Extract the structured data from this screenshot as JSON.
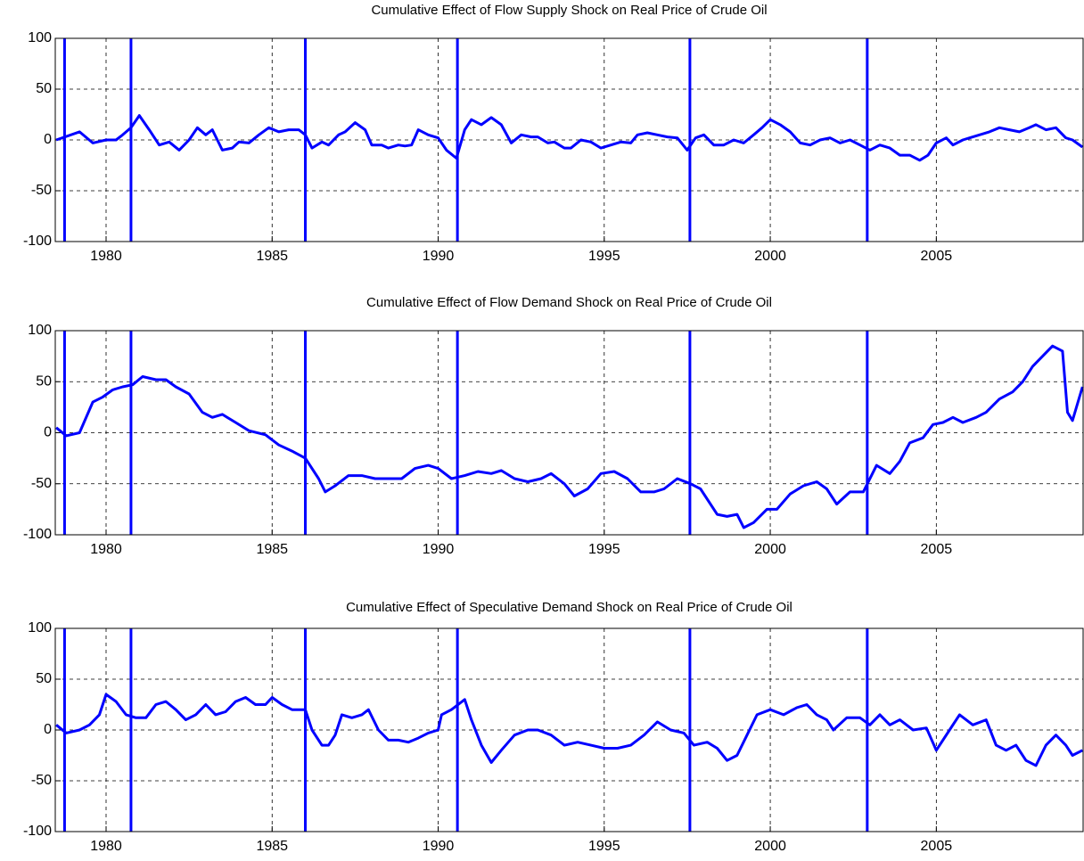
{
  "chart_data": [
    {
      "type": "line",
      "title": "Cumulative Effect of Flow Supply Shock on Real Price of Crude Oil",
      "color": "#0000ff",
      "grid": true,
      "xlim": [
        1978.47,
        2009.42
      ],
      "ylim": [
        -100,
        100
      ],
      "xticks": [
        1980,
        1985,
        1990,
        1995,
        2000,
        2005
      ],
      "yticks": [
        -100,
        -50,
        0,
        50,
        100
      ],
      "events": [
        1978.75,
        1980.75,
        1986.0,
        1990.58,
        1997.58,
        2002.92
      ],
      "x": [
        1978.5,
        1979.2,
        1979.6,
        1980.0,
        1980.3,
        1980.5,
        1980.75,
        1981.0,
        1981.3,
        1981.6,
        1981.9,
        1982.2,
        1982.5,
        1982.75,
        1983.0,
        1983.2,
        1983.5,
        1983.8,
        1984.0,
        1984.3,
        1984.6,
        1984.9,
        1985.2,
        1985.5,
        1985.8,
        1986.0,
        1986.2,
        1986.5,
        1986.7,
        1987.0,
        1987.2,
        1987.5,
        1987.8,
        1988.0,
        1988.3,
        1988.5,
        1988.8,
        1989.0,
        1989.2,
        1989.4,
        1989.7,
        1990.0,
        1990.25,
        1990.55,
        1990.8,
        1991.0,
        1991.3,
        1991.6,
        1991.9,
        1992.2,
        1992.5,
        1992.8,
        1993.0,
        1993.3,
        1993.5,
        1993.8,
        1994.0,
        1994.3,
        1994.6,
        1994.9,
        1995.2,
        1995.5,
        1995.8,
        1996.0,
        1996.3,
        1996.6,
        1996.9,
        1997.2,
        1997.5,
        1997.75,
        1998.0,
        1998.3,
        1998.6,
        1998.9,
        1999.2,
        1999.5,
        1999.75,
        2000.0,
        2000.3,
        2000.6,
        2000.9,
        2001.2,
        2001.5,
        2001.8,
        2002.1,
        2002.4,
        2002.7,
        2003.0,
        2003.3,
        2003.6,
        2003.9,
        2004.2,
        2004.5,
        2004.75,
        2005.0,
        2005.3,
        2005.5,
        2005.8,
        2006.0,
        2006.3,
        2006.6,
        2006.9,
        2007.2,
        2007.5,
        2007.8,
        2008.0,
        2008.3,
        2008.6,
        2008.9,
        2009.1,
        2009.4
      ],
      "values": [
        0,
        8,
        -3,
        0,
        0,
        5,
        12,
        24,
        10,
        -5,
        -2,
        -10,
        0,
        12,
        5,
        10,
        -10,
        -8,
        -2,
        -3,
        5,
        12,
        8,
        10,
        10,
        5,
        -8,
        -2,
        -5,
        5,
        8,
        17,
        10,
        -5,
        -5,
        -8,
        -5,
        -6,
        -5,
        10,
        5,
        2,
        -10,
        -18,
        10,
        20,
        15,
        22,
        15,
        -3,
        5,
        3,
        3,
        -3,
        -2,
        -8,
        -8,
        0,
        -2,
        -8,
        -5,
        -2,
        -3,
        5,
        7,
        5,
        3,
        2,
        -10,
        2,
        5,
        -5,
        -5,
        0,
        -3,
        5,
        12,
        20,
        15,
        8,
        -3,
        -5,
        0,
        2,
        -3,
        0,
        -5,
        -10,
        -5,
        -8,
        -15,
        -15,
        -20,
        -15,
        -3,
        2,
        -5,
        0,
        2,
        5,
        8,
        12,
        10,
        8,
        12,
        15,
        10,
        12,
        2,
        0,
        -7
      ]
    },
    {
      "type": "line",
      "title": "Cumulative Effect of Flow Demand Shock on Real Price of Crude Oil",
      "color": "#0000ff",
      "grid": true,
      "xlim": [
        1978.47,
        2009.42
      ],
      "ylim": [
        -100,
        100
      ],
      "xticks": [
        1980,
        1985,
        1990,
        1995,
        2000,
        2005
      ],
      "yticks": [
        -100,
        -50,
        0,
        50,
        100
      ],
      "events": [
        1978.75,
        1980.75,
        1986.0,
        1990.58,
        1997.58,
        2002.92
      ],
      "x": [
        1978.5,
        1978.8,
        1979.2,
        1979.6,
        1979.9,
        1980.2,
        1980.5,
        1980.8,
        1981.1,
        1981.5,
        1981.8,
        1982.1,
        1982.5,
        1982.9,
        1983.2,
        1983.5,
        1983.9,
        1984.3,
        1984.8,
        1985.2,
        1985.6,
        1986.0,
        1986.4,
        1986.6,
        1986.9,
        1987.3,
        1987.7,
        1988.1,
        1988.5,
        1988.9,
        1989.3,
        1989.7,
        1990.0,
        1990.4,
        1990.8,
        1991.2,
        1991.6,
        1991.9,
        1992.3,
        1992.7,
        1993.1,
        1993.4,
        1993.8,
        1994.1,
        1994.5,
        1994.9,
        1995.3,
        1995.7,
        1996.1,
        1996.5,
        1996.8,
        1997.2,
        1997.6,
        1997.9,
        1998.4,
        1998.7,
        1999.0,
        1999.2,
        1999.5,
        1999.9,
        2000.2,
        2000.6,
        2001.0,
        2001.4,
        2001.7,
        2002.0,
        2002.4,
        2002.8,
        2003.2,
        2003.6,
        2003.9,
        2004.2,
        2004.6,
        2004.9,
        2005.2,
        2005.5,
        2005.8,
        2006.2,
        2006.5,
        2006.9,
        2007.3,
        2007.6,
        2007.9,
        2008.2,
        2008.5,
        2008.8,
        2008.95,
        2009.1,
        2009.4
      ],
      "values": [
        5,
        -3,
        0,
        30,
        35,
        42,
        45,
        47,
        55,
        52,
        52,
        45,
        38,
        20,
        15,
        18,
        10,
        2,
        -2,
        -12,
        -18,
        -25,
        -45,
        -58,
        -52,
        -42,
        -42,
        -45,
        -45,
        -45,
        -35,
        -32,
        -35,
        -45,
        -42,
        -38,
        -40,
        -37,
        -45,
        -48,
        -45,
        -40,
        -50,
        -62,
        -55,
        -40,
        -38,
        -45,
        -58,
        -58,
        -55,
        -45,
        -50,
        -55,
        -80,
        -82,
        -80,
        -93,
        -88,
        -75,
        -75,
        -60,
        -52,
        -48,
        -55,
        -70,
        -58,
        -58,
        -32,
        -40,
        -28,
        -10,
        -5,
        8,
        10,
        15,
        10,
        15,
        20,
        33,
        40,
        50,
        65,
        75,
        85,
        80,
        20,
        12,
        45
      ]
    },
    {
      "type": "line",
      "title": "Cumulative Effect of Speculative Demand Shock on Real Price of Crude Oil",
      "color": "#0000ff",
      "grid": true,
      "xlim": [
        1978.47,
        2009.42
      ],
      "ylim": [
        -100,
        100
      ],
      "xticks": [
        1980,
        1985,
        1990,
        1995,
        2000,
        2005
      ],
      "yticks": [
        -100,
        -50,
        0,
        50,
        100
      ],
      "events": [
        1978.75,
        1980.75,
        1986.0,
        1990.58,
        1997.58,
        2002.92
      ],
      "x": [
        1978.5,
        1978.8,
        1979.2,
        1979.5,
        1979.8,
        1980.0,
        1980.3,
        1980.6,
        1980.9,
        1981.2,
        1981.5,
        1981.8,
        1982.1,
        1982.4,
        1982.7,
        1983.0,
        1983.3,
        1983.6,
        1983.9,
        1984.2,
        1984.5,
        1984.8,
        1985.0,
        1985.3,
        1985.6,
        1986.0,
        1986.2,
        1986.5,
        1986.7,
        1986.9,
        1987.1,
        1987.4,
        1987.7,
        1987.9,
        1988.2,
        1988.5,
        1988.8,
        1989.1,
        1989.4,
        1989.7,
        1990.0,
        1990.1,
        1990.4,
        1990.8,
        1991.0,
        1991.3,
        1991.6,
        1991.9,
        1992.3,
        1992.7,
        1993.0,
        1993.4,
        1993.8,
        1994.2,
        1994.6,
        1995.0,
        1995.4,
        1995.8,
        1996.2,
        1996.6,
        1997.0,
        1997.4,
        1997.7,
        1998.1,
        1998.4,
        1998.7,
        1999.0,
        1999.3,
        1999.6,
        2000.0,
        2000.4,
        2000.8,
        2001.1,
        2001.4,
        2001.7,
        2001.9,
        2002.3,
        2002.7,
        2003.0,
        2003.3,
        2003.6,
        2003.9,
        2004.3,
        2004.7,
        2005.0,
        2005.4,
        2005.7,
        2006.1,
        2006.5,
        2006.8,
        2007.1,
        2007.4,
        2007.7,
        2008.0,
        2008.3,
        2008.6,
        2008.9,
        2009.1,
        2009.4
      ],
      "values": [
        5,
        -3,
        0,
        5,
        15,
        35,
        28,
        15,
        12,
        12,
        25,
        28,
        20,
        10,
        15,
        25,
        15,
        18,
        28,
        32,
        25,
        25,
        32,
        25,
        20,
        20,
        0,
        -15,
        -15,
        -5,
        15,
        12,
        15,
        20,
        0,
        -10,
        -10,
        -12,
        -8,
        -3,
        0,
        15,
        20,
        30,
        10,
        -15,
        -32,
        -20,
        -5,
        0,
        0,
        -5,
        -15,
        -12,
        -15,
        -18,
        -18,
        -15,
        -5,
        8,
        0,
        -3,
        -15,
        -12,
        -18,
        -30,
        -25,
        -5,
        15,
        20,
        15,
        22,
        25,
        15,
        10,
        0,
        12,
        12,
        5,
        15,
        5,
        10,
        0,
        2,
        -20,
        0,
        15,
        5,
        10,
        -15,
        -20,
        -15,
        -30,
        -35,
        -15,
        -5,
        -15,
        -25,
        -20
      ]
    }
  ]
}
